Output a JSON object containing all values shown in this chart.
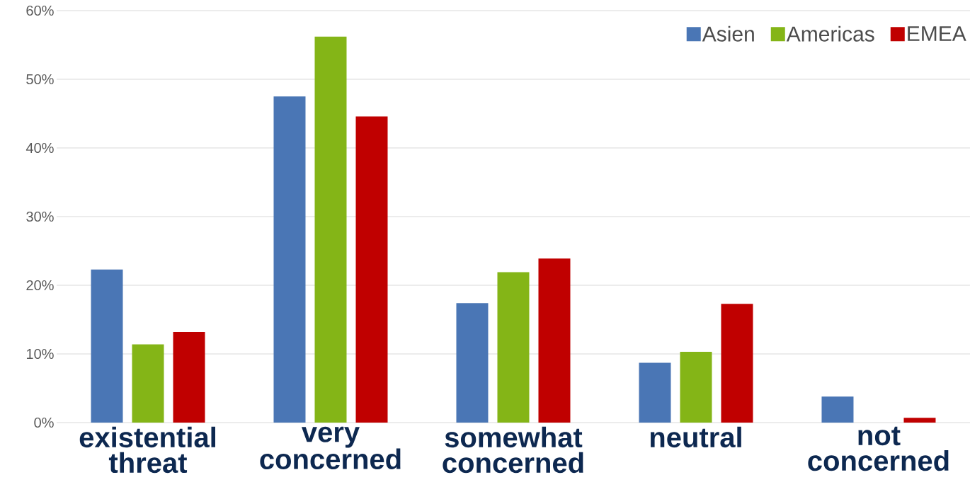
{
  "chart_data": {
    "type": "bar",
    "categories": [
      "existential threat",
      "very concerned",
      "somewhat concerned",
      "neutral",
      "not concerned"
    ],
    "series": [
      {
        "name": "Asien",
        "color": "#4a76b5",
        "values": [
          22.3,
          47.5,
          17.4,
          8.7,
          3.8
        ]
      },
      {
        "name": "Americas",
        "color": "#84b517",
        "values": [
          11.4,
          56.2,
          21.9,
          10.3,
          0
        ]
      },
      {
        "name": "EMEA",
        "color": "#c00000",
        "values": [
          13.2,
          44.6,
          23.9,
          17.3,
          0.7
        ]
      }
    ],
    "ylim": [
      0,
      60
    ],
    "yticks": [
      {
        "value": 0,
        "label": "0%"
      },
      {
        "value": 10,
        "label": "10%"
      },
      {
        "value": 20,
        "label": "20%"
      },
      {
        "value": 30,
        "label": "30%"
      },
      {
        "value": 40,
        "label": "40%"
      },
      {
        "value": 50,
        "label": "50%"
      },
      {
        "value": 60,
        "label": "60%"
      }
    ],
    "grid": "y",
    "legend": "top right"
  }
}
